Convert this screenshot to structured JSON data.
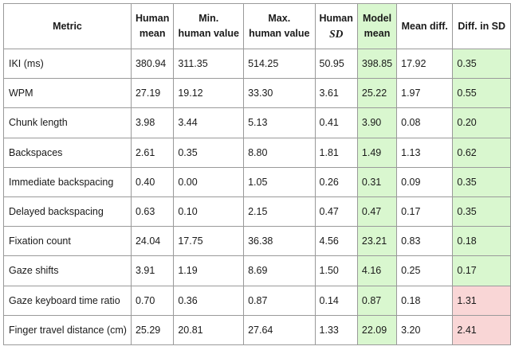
{
  "table": {
    "headers": {
      "metric": "Metric",
      "human_mean": [
        "Human",
        "mean"
      ],
      "min_human": [
        "Min.",
        "human value"
      ],
      "max_human": [
        "Max.",
        "human value"
      ],
      "human_sd": [
        "Human",
        "SD"
      ],
      "model_mean": [
        "Model",
        "mean"
      ],
      "mean_diff": "Mean diff.",
      "diff_sd": "Diff. in SD"
    },
    "rows": [
      {
        "metric": "IKI (ms)",
        "human_mean": "380.94",
        "min": "311.35",
        "max": "514.25",
        "sd": "50.95",
        "model": "398.85",
        "mean_diff": "17.92",
        "diff_sd": "0.35",
        "status": "good"
      },
      {
        "metric": "WPM",
        "human_mean": "27.19",
        "min": "19.12",
        "max": "33.30",
        "sd": "3.61",
        "model": "25.22",
        "mean_diff": "1.97",
        "diff_sd": "0.55",
        "status": "good"
      },
      {
        "metric": "Chunk length",
        "human_mean": "3.98",
        "min": "3.44",
        "max": "5.13",
        "sd": "0.41",
        "model": "3.90",
        "mean_diff": "0.08",
        "diff_sd": "0.20",
        "status": "good"
      },
      {
        "metric": "Backspaces",
        "human_mean": "2.61",
        "min": "0.35",
        "max": "8.80",
        "sd": "1.81",
        "model": "1.49",
        "mean_diff": "1.13",
        "diff_sd": "0.62",
        "status": "good"
      },
      {
        "metric": "Immediate backspacing",
        "human_mean": "0.40",
        "min": "0.00",
        "max": "1.05",
        "sd": "0.26",
        "model": "0.31",
        "mean_diff": "0.09",
        "diff_sd": "0.35",
        "status": "good"
      },
      {
        "metric": "Delayed backspacing",
        "human_mean": "0.63",
        "min": "0.10",
        "max": "2.15",
        "sd": "0.47",
        "model": "0.47",
        "mean_diff": "0.17",
        "diff_sd": "0.35",
        "status": "good"
      },
      {
        "metric": "Fixation count",
        "human_mean": "24.04",
        "min": "17.75",
        "max": "36.38",
        "sd": "4.56",
        "model": "23.21",
        "mean_diff": "0.83",
        "diff_sd": "0.18",
        "status": "good"
      },
      {
        "metric": "Gaze shifts",
        "human_mean": "3.91",
        "min": "1.19",
        "max": "8.69",
        "sd": "1.50",
        "model": "4.16",
        "mean_diff": "0.25",
        "diff_sd": "0.17",
        "status": "good"
      },
      {
        "metric": "Gaze keyboard time ratio",
        "human_mean": "0.70",
        "min": "0.36",
        "max": "0.87",
        "sd": "0.14",
        "model": "0.87",
        "mean_diff": "0.18",
        "diff_sd": "1.31",
        "status": "bad"
      },
      {
        "metric": "Finger travel distance (cm)",
        "human_mean": "25.29",
        "min": "20.81",
        "max": "27.64",
        "sd": "1.33",
        "model": "22.09",
        "mean_diff": "3.20",
        "diff_sd": "2.41",
        "status": "bad"
      }
    ],
    "colors": {
      "model_fill": "#d9f7cf",
      "good_fill": "#d9f7cf",
      "bad_fill": "#f9d6d6"
    }
  }
}
